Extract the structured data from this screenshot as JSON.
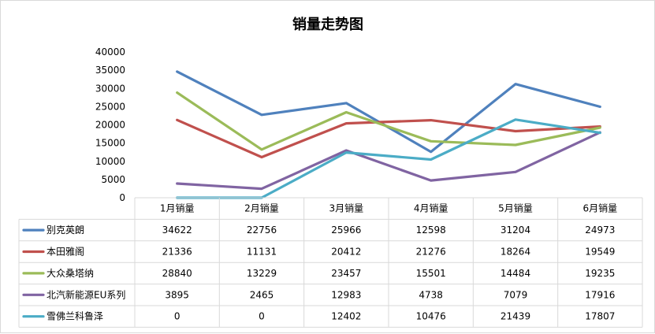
{
  "chart_data": {
    "type": "line",
    "title": "销量走势图",
    "categories": [
      "1月销量",
      "2月销量",
      "3月销量",
      "4月销量",
      "5月销量",
      "6月销量"
    ],
    "ylim": [
      0,
      40000
    ],
    "y_ticks": [
      0,
      5000,
      10000,
      15000,
      20000,
      25000,
      30000,
      35000,
      40000
    ],
    "grid": false,
    "legend": "data table below the plot",
    "series": [
      {
        "name": "别克英朗",
        "color": "#4f81bd",
        "values": [
          34622,
          22756,
          25966,
          12598,
          31204,
          24973
        ]
      },
      {
        "name": "本田雅阁",
        "color": "#c0504d",
        "values": [
          21336,
          11131,
          20412,
          21276,
          18264,
          19549
        ]
      },
      {
        "name": "大众桑塔纳",
        "color": "#9bbb59",
        "values": [
          28840,
          13229,
          23457,
          15501,
          14484,
          19235
        ]
      },
      {
        "name": "北汽新能源EU系列",
        "color": "#8064a2",
        "values": [
          3895,
          2465,
          12983,
          4738,
          7079,
          17916
        ]
      },
      {
        "name": "雪佛兰科鲁泽",
        "color": "#4bacc6",
        "values": [
          0,
          0,
          12402,
          10476,
          21439,
          17807
        ]
      }
    ]
  }
}
